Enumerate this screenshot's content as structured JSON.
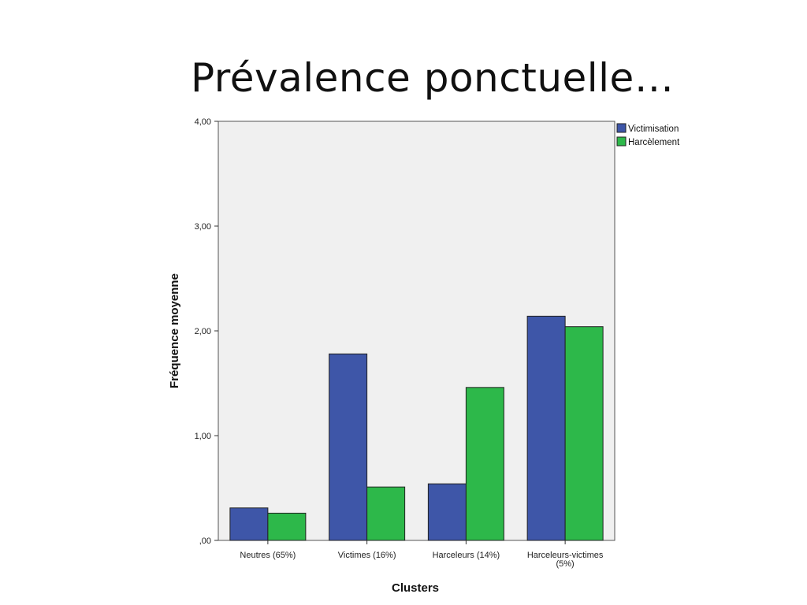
{
  "slide": {
    "title": "Prévalence ponctuelle…"
  },
  "chart_data": {
    "type": "bar",
    "title": "",
    "xlabel": "Clusters",
    "ylabel": "Fréquence moyenne",
    "ylim": [
      0,
      4
    ],
    "yticks": [
      0,
      1,
      2,
      3,
      4
    ],
    "ytick_labels": [
      ",00",
      "1,00",
      "2,00",
      "3,00",
      "4,00"
    ],
    "categories": [
      "Neutres (65%)",
      "Victimes (16%)",
      "Harceleurs (14%)",
      "Harceleurs-victimes (5%)"
    ],
    "category_lines": [
      [
        "Neutres (65%)"
      ],
      [
        "Victimes (16%)"
      ],
      [
        "Harceleurs (14%)"
      ],
      [
        "Harceleurs-victimes",
        "(5%)"
      ]
    ],
    "series": [
      {
        "name": "Victimisation",
        "color": "#3e56a8",
        "values": [
          0.31,
          1.78,
          0.54,
          2.14
        ]
      },
      {
        "name": "Harcèlement",
        "color": "#2db84a",
        "values": [
          0.26,
          0.51,
          1.46,
          2.04
        ]
      }
    ],
    "legend_position": "top-right",
    "grid": false,
    "plot_background": "#f0f0f0"
  }
}
